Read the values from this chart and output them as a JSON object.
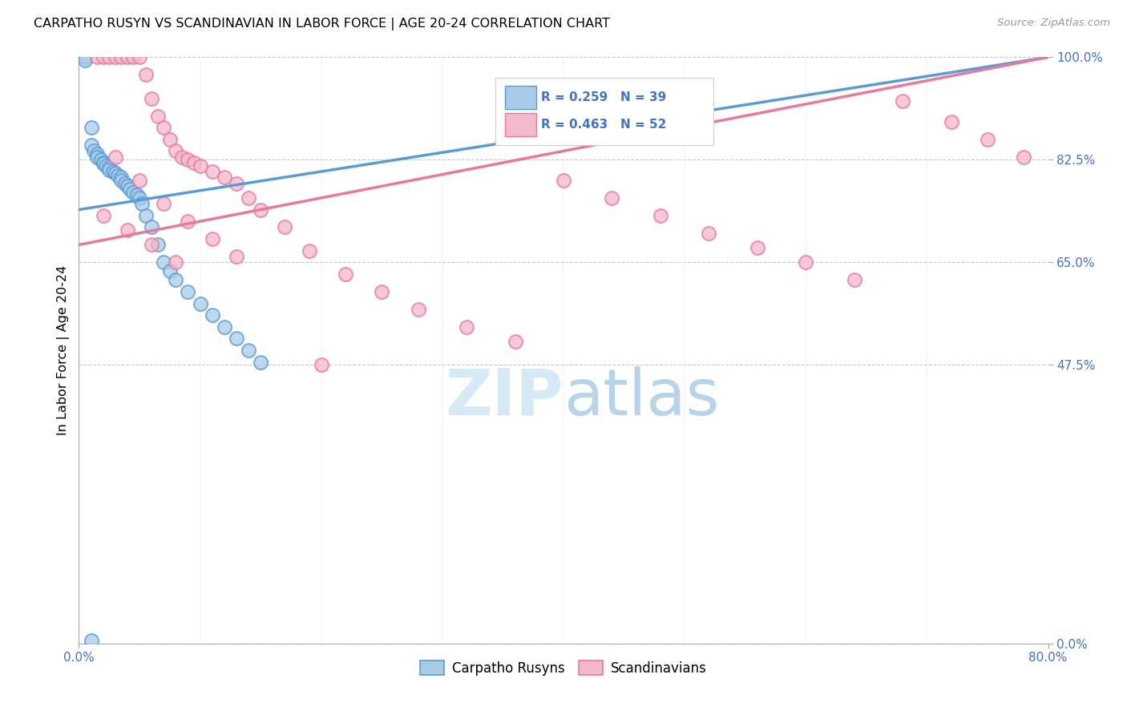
{
  "title": "CARPATHO RUSYN VS SCANDINAVIAN IN LABOR FORCE | AGE 20-24 CORRELATION CHART",
  "source": "Source: ZipAtlas.com",
  "ylabel": "In Labor Force | Age 20-24",
  "xlim": [
    0.0,
    80.0
  ],
  "ylim": [
    0.0,
    100.0
  ],
  "x_ticks": [
    0.0,
    80.0
  ],
  "y_ticks": [
    0.0,
    47.5,
    65.0,
    82.5,
    100.0
  ],
  "legend_labels": [
    "Carpatho Rusyns",
    "Scandinavians"
  ],
  "carpatho_R": 0.259,
  "carpatho_N": 39,
  "scandinavian_R": 0.463,
  "scandinavian_N": 52,
  "carpatho_color": "#a8cce8",
  "scandinavian_color": "#f4b8cc",
  "carpatho_edge_color": "#5b9bd5",
  "scandinavian_edge_color": "#e8799a",
  "carpatho_line_color": "#5b9bd5",
  "scandinavian_line_color": "#e8799a",
  "text_color": "#4472c4",
  "stat_text_color": "#4472c4",
  "background_color": "#ffffff",
  "grid_color": "#c8c8c8",
  "watermark_color": "#d5eaf5",
  "carpatho_x": [
    0.5,
    0.5,
    1.0,
    1.0,
    1.2,
    1.5,
    1.5,
    1.8,
    2.0,
    2.0,
    2.2,
    2.5,
    2.5,
    2.8,
    3.0,
    3.2,
    3.5,
    3.5,
    3.8,
    4.0,
    4.2,
    4.5,
    4.8,
    5.0,
    5.2,
    5.5,
    6.0,
    6.5,
    7.0,
    7.5,
    8.0,
    9.0,
    10.0,
    11.0,
    12.0,
    13.0,
    14.0,
    15.0,
    1.0
  ],
  "carpatho_y": [
    100.0,
    99.5,
    88.0,
    85.0,
    84.0,
    83.5,
    83.0,
    82.5,
    82.0,
    81.8,
    81.5,
    81.2,
    80.8,
    80.5,
    80.2,
    79.8,
    79.5,
    79.0,
    78.5,
    78.0,
    77.5,
    77.0,
    76.5,
    76.0,
    75.0,
    73.0,
    71.0,
    68.0,
    65.0,
    63.5,
    62.0,
    60.0,
    58.0,
    56.0,
    54.0,
    52.0,
    50.0,
    48.0,
    0.5
  ],
  "scandinavian_x": [
    1.5,
    2.0,
    2.5,
    3.0,
    3.5,
    4.0,
    4.5,
    5.0,
    5.5,
    6.0,
    6.5,
    7.0,
    7.5,
    8.0,
    8.5,
    9.0,
    9.5,
    10.0,
    11.0,
    12.0,
    13.0,
    14.0,
    15.0,
    17.0,
    19.0,
    22.0,
    25.0,
    28.0,
    32.0,
    36.0,
    40.0,
    44.0,
    48.0,
    52.0,
    56.0,
    60.0,
    64.0,
    68.0,
    72.0,
    75.0,
    78.0,
    3.0,
    5.0,
    7.0,
    9.0,
    11.0,
    13.0,
    2.0,
    4.0,
    6.0,
    8.0,
    20.0
  ],
  "scandinavian_y": [
    100.0,
    100.0,
    100.0,
    100.0,
    100.0,
    100.0,
    100.0,
    100.0,
    97.0,
    93.0,
    90.0,
    88.0,
    86.0,
    84.0,
    83.0,
    82.5,
    82.0,
    81.5,
    80.5,
    79.5,
    78.5,
    76.0,
    74.0,
    71.0,
    67.0,
    63.0,
    60.0,
    57.0,
    54.0,
    51.5,
    79.0,
    76.0,
    73.0,
    70.0,
    67.5,
    65.0,
    62.0,
    92.5,
    89.0,
    86.0,
    83.0,
    83.0,
    79.0,
    75.0,
    72.0,
    69.0,
    66.0,
    73.0,
    70.5,
    68.0,
    65.0,
    47.5
  ]
}
